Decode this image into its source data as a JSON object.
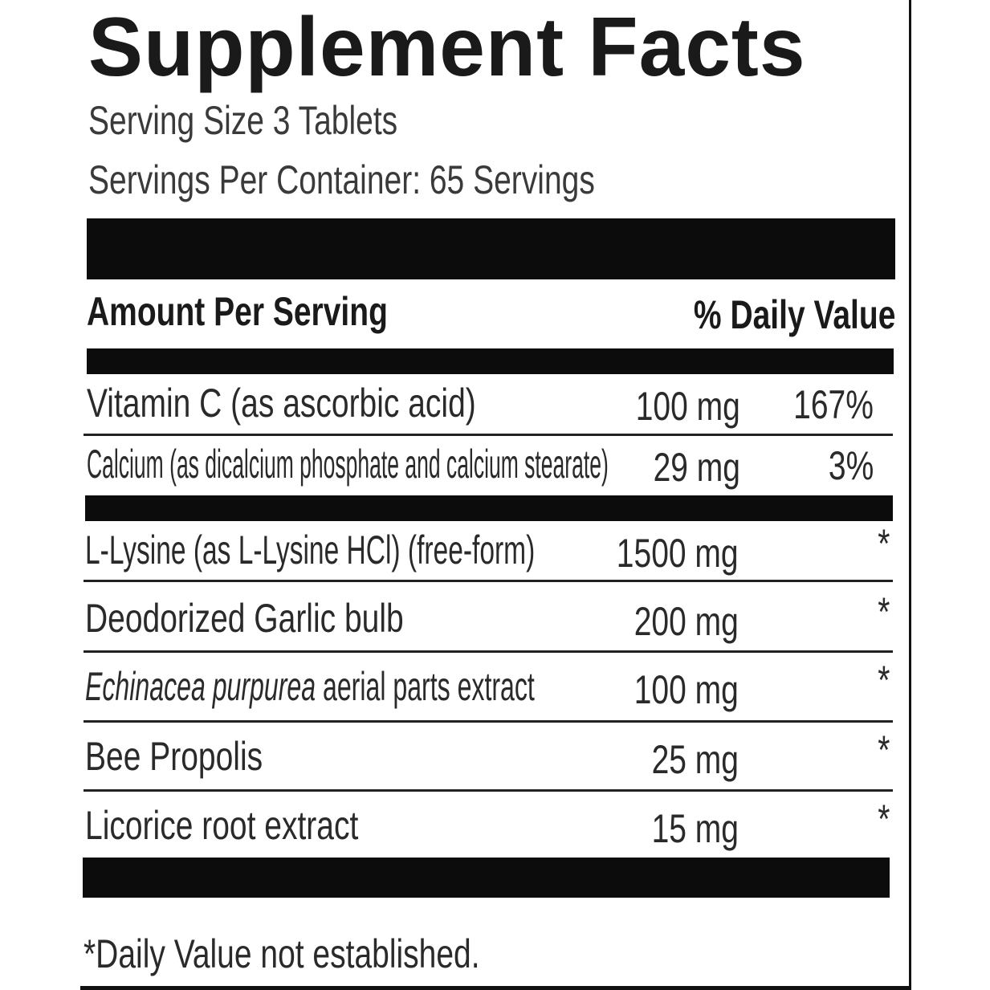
{
  "title": "Supplement Facts",
  "serving_size": "Serving Size 3 Tablets",
  "servings_per_container": "Servings Per Container: 65 Servings",
  "header": {
    "amount": "Amount Per Serving",
    "dv": "% Daily Value"
  },
  "nutrients": [
    {
      "name": "Vitamin C (as ascorbic acid)",
      "amount": "100 mg",
      "dv": "167%"
    },
    {
      "name": "Calcium (as dicalcium phosphate and calcium stearate)",
      "amount": "29 mg",
      "dv": "3%"
    }
  ],
  "ingredients": [
    {
      "name_italic": "",
      "name": "L-Lysine (as L-Lysine HCl) (free-form)",
      "amount": "1500 mg",
      "dv": "*"
    },
    {
      "name_italic": "",
      "name": "Deodorized Garlic bulb",
      "amount": "200 mg",
      "dv": "*"
    },
    {
      "name_italic": "Echinacea purpurea",
      "name": " aerial parts extract",
      "amount": "100 mg",
      "dv": "*"
    },
    {
      "name_italic": "",
      "name": "Bee Propolis",
      "amount": "25 mg",
      "dv": "*"
    },
    {
      "name_italic": "",
      "name": "Licorice root extract",
      "amount": "15 mg",
      "dv": "*"
    }
  ],
  "footnote": "*Daily Value not established."
}
